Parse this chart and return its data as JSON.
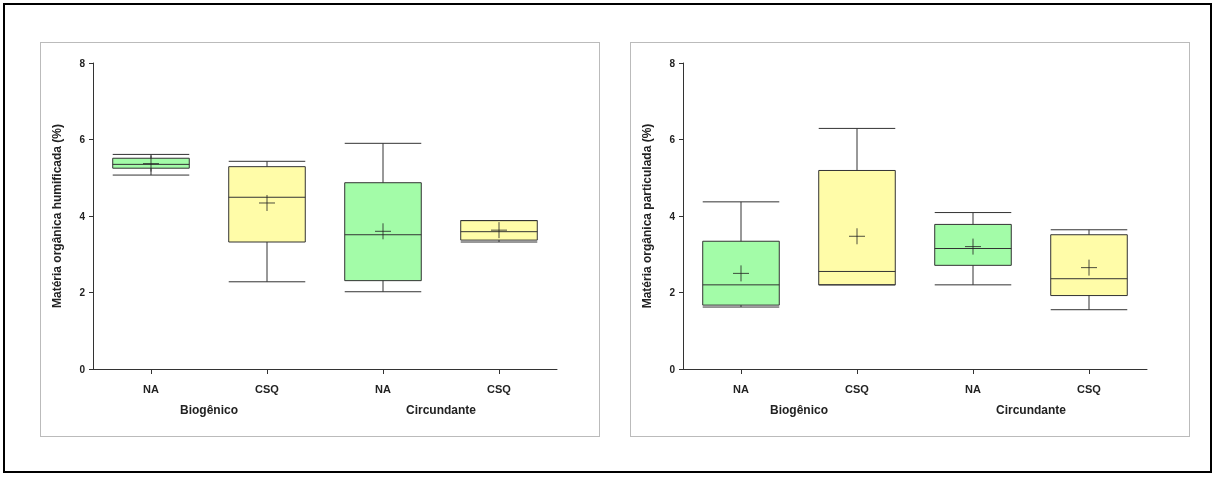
{
  "chart_data": [
    {
      "type": "box",
      "ylabel": "Matéria orgânica humificada (%)",
      "categories": [
        "NA",
        "CSQ",
        "NA",
        "CSQ"
      ],
      "colors": [
        "#a3fca8",
        "#fffca8",
        "#a3fca8",
        "#fffca8"
      ],
      "boxes": [
        {
          "low": 5.07,
          "q1": 5.25,
          "median": 5.35,
          "q3": 5.51,
          "high": 5.61,
          "mean": 5.37
        },
        {
          "low": 2.28,
          "q1": 3.32,
          "median": 4.49,
          "q3": 5.29,
          "high": 5.43,
          "mean": 4.34
        },
        {
          "low": 2.02,
          "q1": 2.31,
          "median": 3.51,
          "q3": 4.87,
          "high": 5.9,
          "mean": 3.6
        },
        {
          "low": 3.32,
          "q1": 3.37,
          "median": 3.59,
          "q3": 3.88,
          "high": 3.88,
          "mean": 3.63
        }
      ],
      "ylim": [
        0,
        8
      ],
      "yticks": [
        0,
        2,
        4,
        6,
        8
      ],
      "grid": false,
      "annotations": [
        "Biogênico",
        "Circundante"
      ]
    },
    {
      "type": "box",
      "ylabel": "Matéria orgânica particulada (%)",
      "categories": [
        "NA",
        "CSQ",
        "NA",
        "CSQ"
      ],
      "colors": [
        "#a3fca8",
        "#fffca8",
        "#a3fca8",
        "#fffca8"
      ],
      "boxes": [
        {
          "low": 1.62,
          "q1": 1.67,
          "median": 2.2,
          "q3": 3.34,
          "high": 4.37,
          "mean": 2.5
        },
        {
          "low": 2.2,
          "q1": 2.2,
          "median": 2.55,
          "q3": 5.19,
          "high": 6.29,
          "mean": 3.47
        },
        {
          "low": 2.2,
          "q1": 2.71,
          "median": 3.15,
          "q3": 3.78,
          "high": 4.09,
          "mean": 3.2
        },
        {
          "low": 1.55,
          "q1": 1.92,
          "median": 2.36,
          "q3": 3.51,
          "high": 3.64,
          "mean": 2.65
        }
      ],
      "ylim": [
        0,
        8
      ],
      "yticks": [
        0,
        2,
        4,
        6,
        8
      ],
      "grid": false,
      "annotations": [
        "Biogênico",
        "Circundante"
      ]
    }
  ]
}
